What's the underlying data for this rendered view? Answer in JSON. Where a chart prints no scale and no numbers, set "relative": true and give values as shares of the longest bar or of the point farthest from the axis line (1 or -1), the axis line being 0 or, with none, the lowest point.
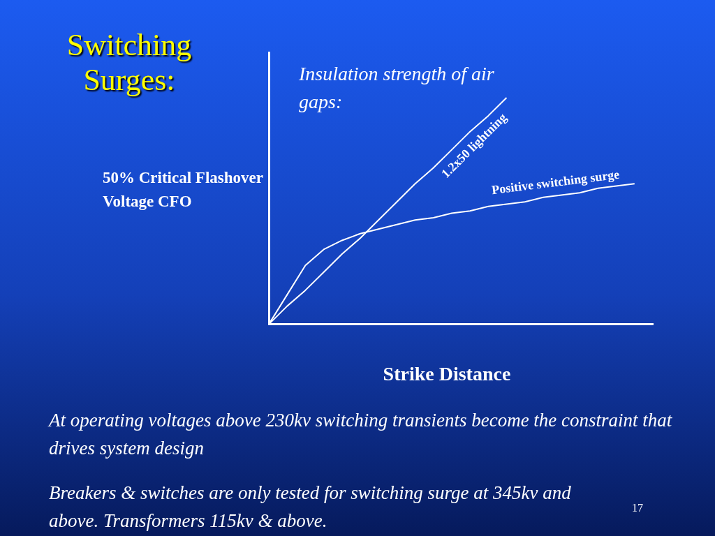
{
  "chart_data": {
    "type": "line",
    "title": "Switching Surges:",
    "subtitle": "Insulation strength of air gaps:",
    "ylabel": "50% Critical Flashover Voltage CFO",
    "xlabel": "Strike Distance",
    "relative": true,
    "grid": false,
    "legend": false,
    "marker": "none",
    "line_style": "solid",
    "categories": [
      null,
      null,
      null,
      null,
      null,
      null,
      null,
      null,
      null,
      null,
      null,
      null,
      null,
      null,
      null,
      null,
      null,
      null,
      null,
      null,
      null,
      null
    ],
    "series": [
      {
        "name": "1.2x50 lightning",
        "color": "#ffffff",
        "values": [
          0,
          0.08,
          0.15,
          0.23,
          0.31,
          0.38,
          0.46,
          0.54,
          0.62,
          0.69,
          0.77,
          0.85,
          0.92,
          1,
          null,
          null,
          null,
          null,
          null,
          null,
          null,
          null
        ]
      },
      {
        "name": "Positive switching surge",
        "color": "#ffffff",
        "values": [
          0,
          0.13,
          0.26,
          0.33,
          0.37,
          0.4,
          0.42,
          0.44,
          0.46,
          0.47,
          0.49,
          0.5,
          0.52,
          0.53,
          0.54,
          0.56,
          0.57,
          0.58,
          0.6,
          0.61,
          0.62,
          null
        ]
      }
    ],
    "annotations": [
      "At operating voltages above 230kv switching transients become the constraint that drives system design",
      "Breakers & switches are only tested for switching surge at 345kv and above. Transformers 115kv & above.",
      "17"
    ]
  }
}
